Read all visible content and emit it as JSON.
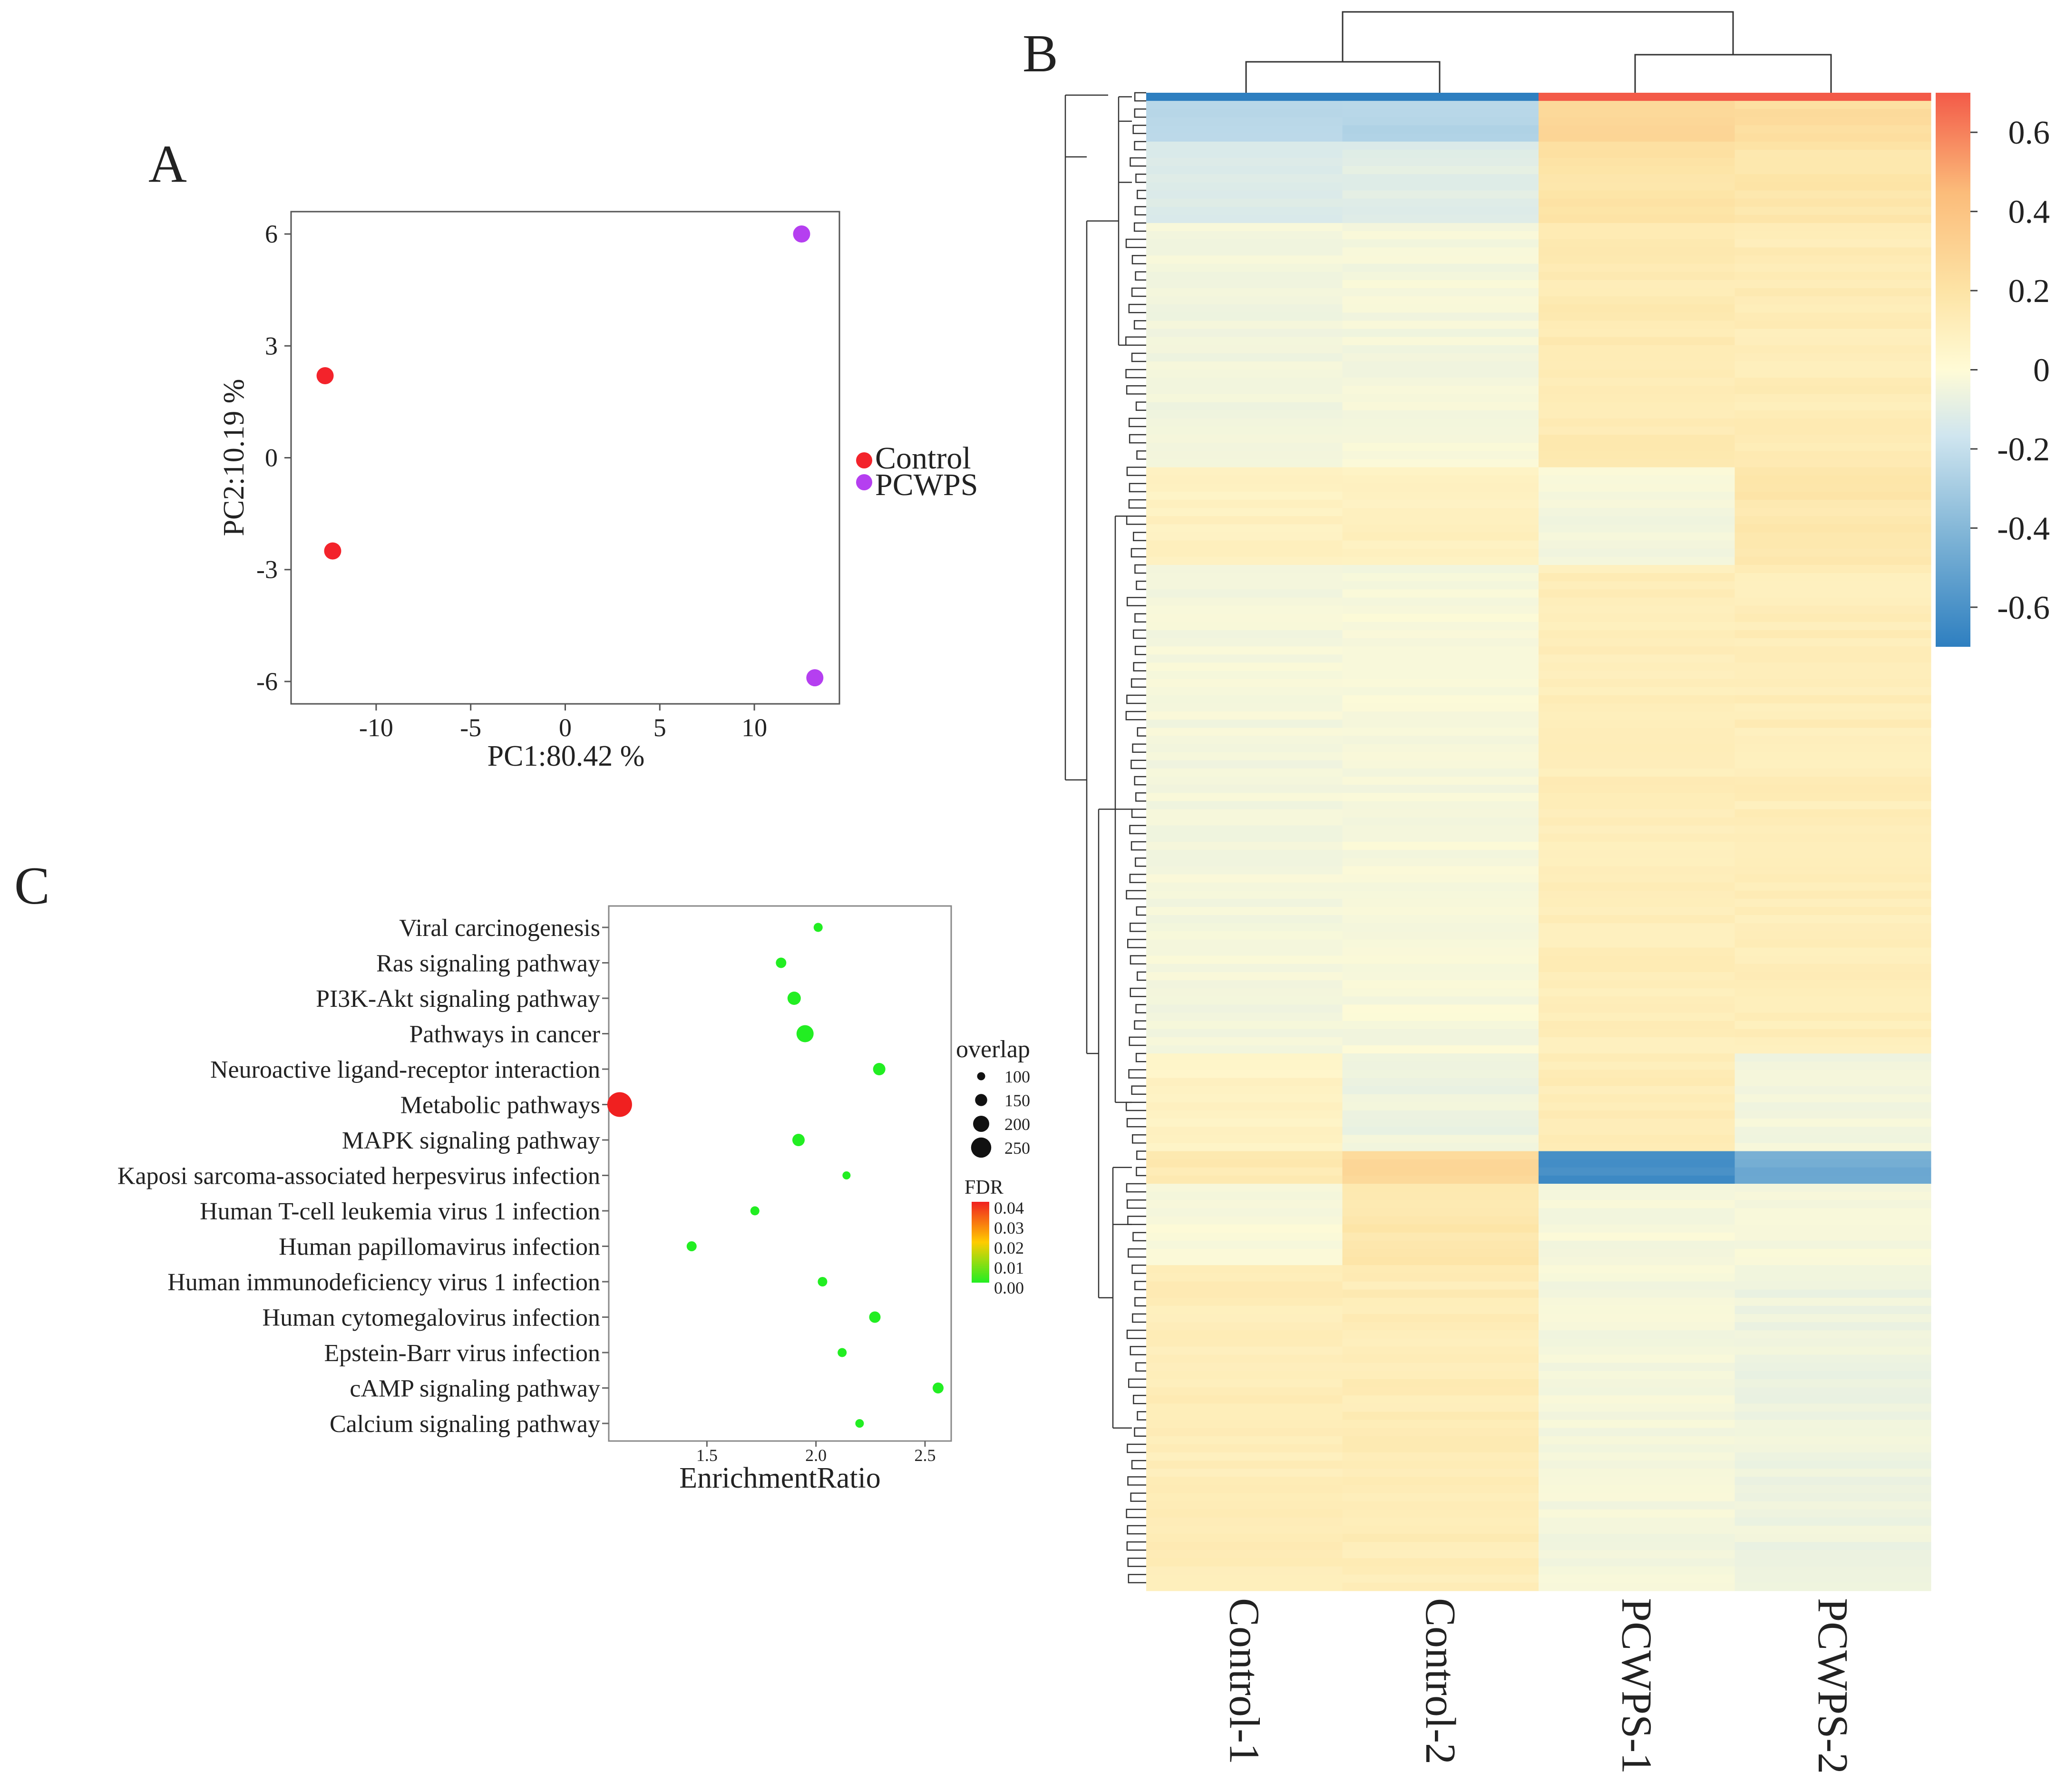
{
  "panels": {
    "a": "A",
    "b": "B",
    "c": "C"
  },
  "chart_data": [
    {
      "type": "scatter",
      "panel": "A",
      "xlabel": "PC1:80.42 %",
      "ylabel": "PC2:10.19 %",
      "xlim": [
        -14.5,
        14.5
      ],
      "ylim": [
        -6.6,
        6.6
      ],
      "xticks": [
        -10,
        -5,
        0,
        5,
        10
      ],
      "xtick_labels": [
        "-10",
        "-5",
        "0",
        "5",
        "10"
      ],
      "yticks": [
        -6,
        -3,
        0,
        3,
        6
      ],
      "ytick_labels": [
        "-6",
        "-3",
        "0",
        "3",
        "6"
      ],
      "legend_position": "right",
      "series": [
        {
          "name": "Control",
          "color": "#f3232b",
          "points": [
            [
              -12.7,
              2.2
            ],
            [
              -12.3,
              -2.5
            ]
          ]
        },
        {
          "name": "PCWPS",
          "color": "#b53ff0",
          "points": [
            [
              12.5,
              6.0
            ],
            [
              13.2,
              -5.9
            ]
          ]
        }
      ]
    },
    {
      "type": "heatmap",
      "panel": "B",
      "columns": [
        "Control-1",
        "Control-2",
        "PCWPS-1",
        "PCWPS-2"
      ],
      "colorbar": {
        "range": [
          -0.7,
          0.7
        ],
        "ticks": [
          0.6,
          0.4,
          0.2,
          0,
          -0.2,
          -0.4,
          -0.6
        ],
        "tick_labels": [
          "0.6",
          "0.4",
          "0.2",
          "0",
          "-0.2",
          "-0.4",
          "-0.6"
        ],
        "colors": [
          "#2e7fc0",
          "#7fb4d6",
          "#cfe5ef",
          "#fffbd6",
          "#fde4a6",
          "#fbbc7a",
          "#f35a48"
        ]
      },
      "row_blocks": [
        {
          "rows": 1,
          "values": [
            -0.7,
            -0.7,
            0.7,
            0.7
          ]
        },
        {
          "rows": 5,
          "values": [
            -0.3,
            -0.3,
            0.32,
            0.27
          ]
        },
        {
          "rows": 10,
          "values": [
            -0.16,
            -0.15,
            0.23,
            0.21
          ]
        },
        {
          "rows": 30,
          "values": [
            -0.06,
            -0.05,
            0.17,
            0.15
          ]
        },
        {
          "rows": 12,
          "values": [
            0.1,
            0.11,
            -0.05,
            0.2
          ]
        },
        {
          "rows": 60,
          "values": [
            -0.05,
            -0.04,
            0.14,
            0.14
          ]
        },
        {
          "rows": 12,
          "values": [
            0.08,
            -0.08,
            0.15,
            -0.06
          ]
        },
        {
          "rows": 4,
          "values": [
            0.18,
            0.3,
            -0.65,
            -0.5
          ]
        },
        {
          "rows": 10,
          "values": [
            -0.03,
            0.2,
            -0.04,
            -0.04
          ]
        },
        {
          "rows": 40,
          "values": [
            0.14,
            0.15,
            -0.05,
            -0.08
          ]
        }
      ]
    },
    {
      "type": "scatter",
      "panel": "C",
      "xlabel": "EnrichmentRatio",
      "xlim": [
        1.05,
        2.62
      ],
      "xticks": [
        1.5,
        2.0,
        2.5
      ],
      "xtick_labels": [
        "1.5",
        "2.0",
        "2.5"
      ],
      "categories": [
        "Viral carcinogenesis",
        "Ras signaling pathway",
        "PI3K-Akt signaling pathway",
        "Pathways in cancer",
        "Neuroactive ligand-receptor interaction",
        "Metabolic pathways",
        "MAPK signaling pathway",
        "Kaposi sarcoma-associated herpesvirus infection",
        "Human T-cell leukemia virus 1 infection",
        "Human papillomavirus infection",
        "Human immunodeficiency virus 1 infection",
        "Human cytomegalovirus infection",
        "Epstein-Barr virus infection",
        "cAMP signaling pathway",
        "Calcium signaling pathway"
      ],
      "enrichment_ratio": [
        2.01,
        1.84,
        1.9,
        1.95,
        2.29,
        1.1,
        1.92,
        2.14,
        1.72,
        1.43,
        2.03,
        2.27,
        2.12,
        2.56,
        2.2
      ],
      "overlap": [
        95,
        110,
        140,
        180,
        130,
        260,
        130,
        85,
        95,
        105,
        100,
        120,
        95,
        115,
        90
      ],
      "fdr": [
        0.0,
        0.0,
        0.0,
        0.0,
        0.0,
        0.04,
        0.0,
        0.0,
        0.0,
        0.0,
        0.0,
        0.0,
        0.0,
        0.0,
        0.0
      ],
      "size_legend": {
        "title": "overlap",
        "values": [
          100,
          150,
          200,
          250
        ],
        "labels": [
          "100",
          "150",
          "200",
          "250"
        ]
      },
      "color_legend": {
        "title": "FDR",
        "values": [
          0.04,
          0.03,
          0.02,
          0.01,
          0.0
        ],
        "labels": [
          "0.04",
          "0.03",
          "0.02",
          "0.01",
          "0.00"
        ],
        "low_color": "#22ee22",
        "mid_color": "#ffcc00",
        "high_color": "#f02020"
      }
    }
  ]
}
